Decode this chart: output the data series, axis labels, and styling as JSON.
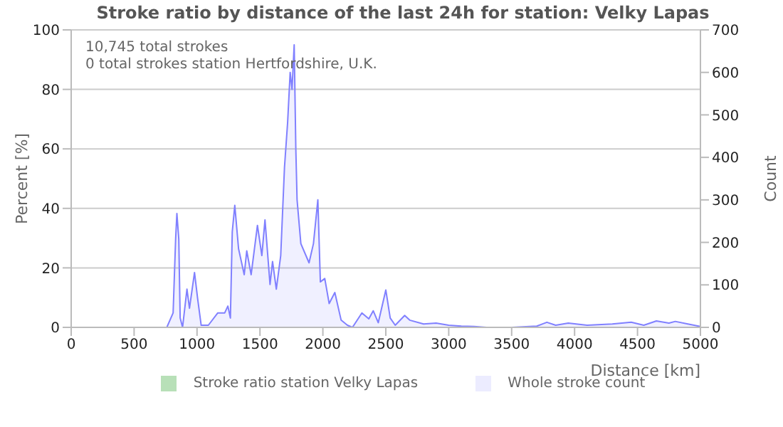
{
  "chart_data": {
    "type": "area",
    "title": "Stroke ratio by distance of the last 24h for station: Velky Lapas",
    "annotations": [
      "10,745 total strokes",
      "0 total strokes station Hertfordshire, U.K."
    ],
    "xlabel": "Distance   [km]",
    "ylabel": "Percent   [%]",
    "y2label": "Count",
    "x": [
      0,
      680,
      760,
      810,
      830,
      840,
      855,
      866,
      885,
      920,
      940,
      980,
      1005,
      1033,
      1090,
      1165,
      1220,
      1245,
      1265,
      1280,
      1300,
      1330,
      1375,
      1395,
      1430,
      1480,
      1515,
      1540,
      1580,
      1600,
      1630,
      1665,
      1695,
      1720,
      1740,
      1755,
      1772,
      1785,
      1795,
      1825,
      1890,
      1925,
      1960,
      1980,
      2015,
      2050,
      2095,
      2145,
      2195,
      2235,
      2310,
      2365,
      2400,
      2440,
      2500,
      2535,
      2575,
      2650,
      2690,
      2800,
      2900,
      3000,
      3100,
      3200,
      3300,
      3500,
      3700,
      3780,
      3850,
      3950,
      4100,
      4300,
      4450,
      4550,
      4650,
      4750,
      4800,
      4900,
      5000
    ],
    "series": [
      {
        "name": "Stroke ratio station Velky Lapas",
        "color": "#b8e0b8",
        "values": [
          null,
          null,
          null,
          null,
          null,
          null,
          null,
          null,
          null,
          null,
          null,
          null,
          null,
          null,
          null,
          null,
          null,
          null,
          null,
          null,
          null,
          null,
          null,
          null,
          null,
          null,
          null,
          null,
          null,
          null,
          null,
          null,
          null,
          null,
          null,
          null,
          null,
          null,
          null,
          null,
          null,
          null,
          null,
          null,
          null,
          null,
          null,
          null,
          null,
          null,
          null,
          null,
          null,
          null,
          null,
          null,
          null,
          null,
          null,
          null,
          null,
          null,
          null,
          null,
          null,
          null,
          null,
          null,
          null,
          null,
          null,
          null,
          null,
          null,
          null,
          null,
          null,
          null,
          null
        ]
      },
      {
        "name": "Whole stroke count",
        "color": "#8080ff",
        "axis": "y2",
        "values": [
          0,
          0,
          0,
          34,
          208,
          268,
          208,
          22,
          0,
          90,
          45,
          129,
          67,
          5,
          5,
          34,
          34,
          50,
          22,
          225,
          287,
          185,
          124,
          180,
          124,
          240,
          169,
          253,
          101,
          155,
          90,
          169,
          377,
          483,
          600,
          560,
          665,
          420,
          300,
          197,
          152,
          197,
          300,
          107,
          115,
          56,
          82,
          17,
          5,
          0,
          34,
          20,
          39,
          11,
          88,
          22,
          5,
          28,
          17,
          8,
          10,
          5,
          3,
          2,
          0,
          0,
          3,
          12,
          5,
          10,
          5,
          8,
          12,
          5,
          15,
          10,
          14,
          8,
          2
        ]
      }
    ],
    "xlim": [
      0,
      5000
    ],
    "xticks": [
      0,
      500,
      1000,
      1500,
      2000,
      2500,
      3000,
      3500,
      4000,
      4500,
      5000
    ],
    "ylim": [
      0,
      100
    ],
    "yticks": [
      0,
      20,
      40,
      60,
      80,
      100
    ],
    "y2lim": [
      0,
      700
    ],
    "y2ticks": [
      0,
      100,
      200,
      300,
      400,
      500,
      600,
      700
    ],
    "grid": "y",
    "legend": "bottom"
  }
}
